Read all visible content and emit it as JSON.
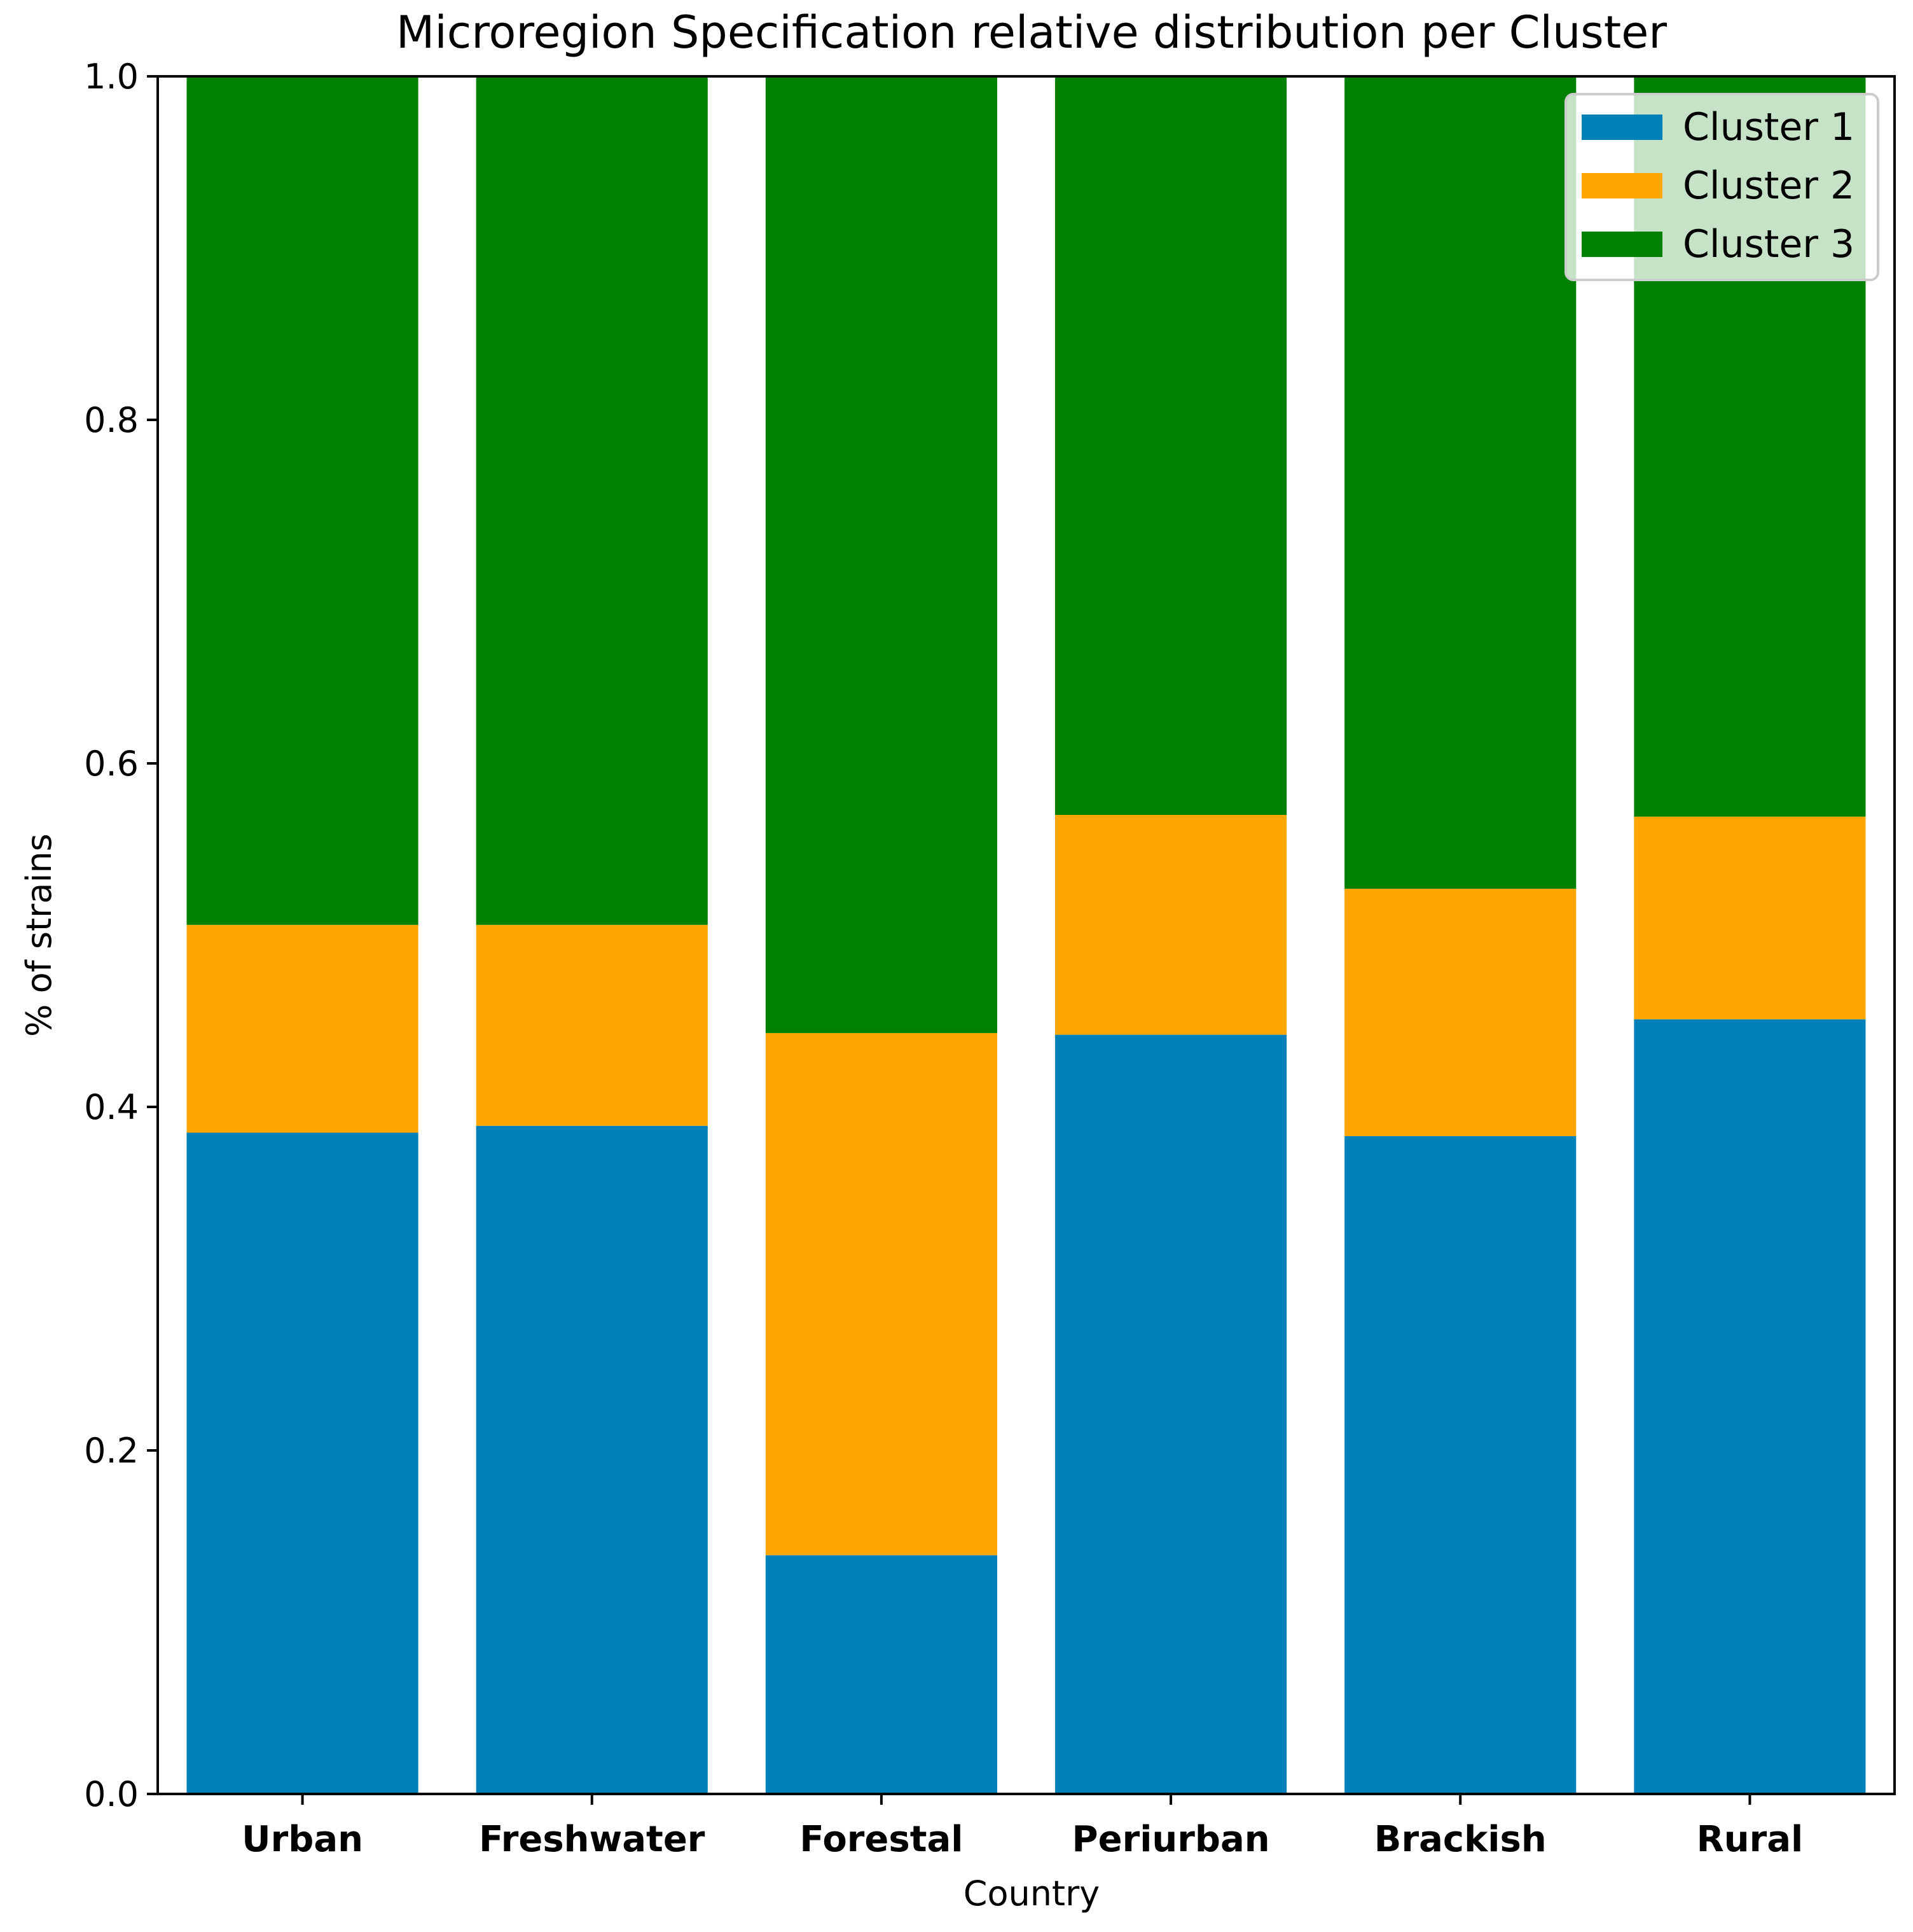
{
  "chart_data": {
    "type": "bar",
    "stacked": true,
    "title": "Microregion Specification relative distribution per Cluster",
    "xlabel": "Country",
    "ylabel": "% of strains",
    "ylim": [
      0.0,
      1.0
    ],
    "yticks": [
      0.0,
      0.2,
      0.4,
      0.6,
      0.8,
      1.0
    ],
    "ytick_labels": [
      "0.0",
      "0.2",
      "0.4",
      "0.6",
      "0.8",
      "1.0"
    ],
    "categories": [
      "Urban",
      "Freshwater",
      "Forestal",
      "Periurban",
      "Brackish",
      "Rural"
    ],
    "series": [
      {
        "name": "Cluster 1",
        "color": "#0080b8",
        "values": [
          0.385,
          0.389,
          0.139,
          0.442,
          0.383,
          0.451
        ]
      },
      {
        "name": "Cluster 2",
        "color": "#ffa500",
        "values": [
          0.121,
          0.117,
          0.304,
          0.128,
          0.144,
          0.118
        ]
      },
      {
        "name": "Cluster 3",
        "color": "#008000",
        "values": [
          0.494,
          0.494,
          0.557,
          0.43,
          0.473,
          0.431
        ]
      }
    ],
    "grid": false,
    "legend": "top-right"
  }
}
